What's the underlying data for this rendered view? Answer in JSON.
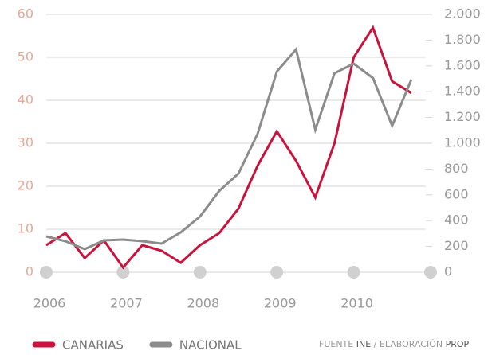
{
  "chart_data": {
    "type": "line",
    "x": [
      2006,
      2006.25,
      2006.5,
      2006.75,
      2007,
      2007.25,
      2007.5,
      2007.75,
      2008,
      2008.25,
      2008.5,
      2008.75,
      2009,
      2009.25,
      2009.5,
      2009.75,
      2010,
      2010.25,
      2010.5,
      2010.75
    ],
    "xlim": [
      2006,
      2011
    ],
    "xticks": [
      2006,
      2007,
      2008,
      2009,
      2010,
      {
        "value": 2011,
        "label": null
      }
    ],
    "ylim": [
      0,
      60
    ],
    "yticks": [
      0,
      10,
      20,
      30,
      40,
      50,
      60
    ],
    "y2lim": [
      0,
      2000
    ],
    "y2ticks": [
      0,
      200,
      400,
      600,
      800,
      {
        "value": 1000,
        "label": "1.000"
      },
      {
        "value": 1200,
        "label": "1.200"
      },
      {
        "value": 1400,
        "label": "1.400"
      },
      {
        "value": 1600,
        "label": "1.600"
      },
      {
        "value": 1800,
        "label": "1.800"
      },
      {
        "value": 2000,
        "label": "2.000"
      }
    ],
    "grid": true,
    "series": [
      {
        "name": "CANARIAS",
        "color": "#c8143c",
        "values": [
          6.3,
          9.1,
          3.3,
          7.4,
          1.1,
          6.3,
          5.0,
          2.2,
          6.3,
          9.1,
          14.8,
          24.8,
          32.8,
          25.9,
          17.4,
          30.0,
          50.0,
          56.9,
          44.4,
          41.7
        ]
      },
      {
        "name": "NACIONAL",
        "color": "#8c8c8c",
        "axis": "y2",
        "values": [
          278,
          241,
          179,
          247,
          253,
          241,
          222,
          309,
          432,
          630,
          765,
          1074,
          1556,
          1728,
          1105,
          1543,
          1617,
          1506,
          1136,
          1494
        ]
      }
    ],
    "source": {
      "prefix": "FUENTE",
      "org": "INE",
      "sep": "/",
      "credit": "ELABORACIÓN",
      "author": "PROP"
    }
  }
}
